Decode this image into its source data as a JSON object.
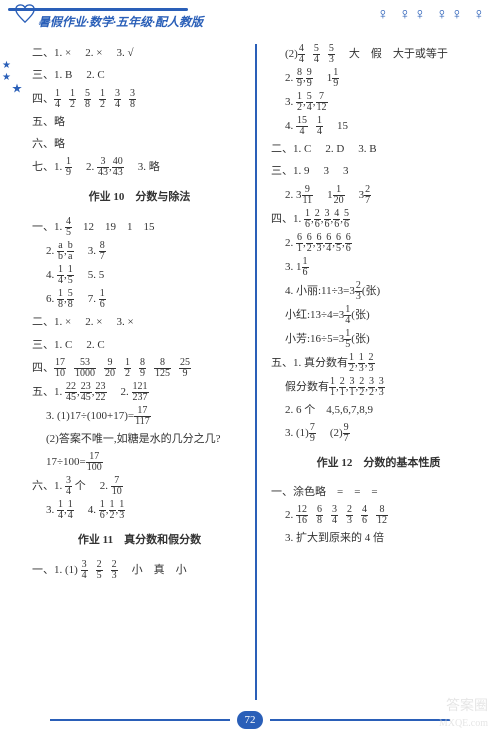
{
  "header": {
    "title": "暑假作业·数学·五年级·配人教版"
  },
  "page_number": "72",
  "watermark1": "答案圈",
  "watermark2": "MXQE.com",
  "col1": {
    "l1": {
      "p1": "二、1. ×",
      "p2": "2. ×",
      "p3": "3. √"
    },
    "l2": {
      "p1": "三、1. B",
      "p2": "2. C"
    },
    "l3_prefix": "四、",
    "l3_fracs": [
      [
        "1",
        "4"
      ],
      [
        "1",
        "2"
      ],
      [
        "5",
        "8"
      ],
      [
        "1",
        "2"
      ],
      [
        "3",
        "4"
      ],
      [
        "3",
        "8"
      ]
    ],
    "l4": "五、略",
    "l5": "六、略",
    "l6_prefix": "七、1.",
    "l6_f1": [
      "1",
      "9"
    ],
    "l6_p2": "2.",
    "l6_f2": [
      "3",
      "43"
    ],
    "l6_f3": [
      "40",
      "43"
    ],
    "l6_p3": "3. 略",
    "section1": "作业 10　分数与除法",
    "l7_prefix": "一、1.",
    "l7_f1": [
      "4",
      "5"
    ],
    "l7_rest": "　12　19　1　15",
    "l8_p1": "2.",
    "l8_f1": [
      "a",
      "b"
    ],
    "l8_f2": [
      "b",
      "a"
    ],
    "l8_p2": "3.",
    "l8_f3": [
      "8",
      "7"
    ],
    "l9_p1": "4.",
    "l9_f1": [
      "1",
      "4"
    ],
    "l9_f2": [
      "1",
      "5"
    ],
    "l9_p2": "5. 5",
    "l10_p1": "6.",
    "l10_f1": [
      "1",
      "8"
    ],
    "l10_f2": [
      "5",
      "8"
    ],
    "l10_p2": "7.",
    "l10_f3": [
      "1",
      "6"
    ],
    "l11": {
      "p1": "二、1. ×",
      "p2": "2. ×",
      "p3": "3. ×"
    },
    "l12": {
      "p1": "三、1. C",
      "p2": "2. C"
    },
    "l13_prefix": "四、",
    "l13_fracs": [
      [
        "17",
        "10"
      ],
      [
        "53",
        "1000"
      ],
      [
        "9",
        "20"
      ],
      [
        "1",
        "2"
      ],
      [
        "8",
        "9"
      ],
      [
        "8",
        "125"
      ],
      [
        "25",
        "9"
      ]
    ],
    "l14_prefix": "五、1.",
    "l14_fracs": [
      [
        "22",
        "45"
      ],
      [
        "23",
        "45"
      ],
      [
        "23",
        "22"
      ]
    ],
    "l14_p2": "2.",
    "l14_f4": [
      "121",
      "237"
    ],
    "l15_p1": "3. (1)17÷(100+17)=",
    "l15_f1": [
      "17",
      "117"
    ],
    "l16": "(2)答案不唯一,如糖是水的几分之几?",
    "l17_p1": "17÷100=",
    "l17_f1": [
      "17",
      "100"
    ],
    "l18_p1": "六、1.",
    "l18_f1": [
      "3",
      "4"
    ],
    "l18_p2": "个",
    "l18_p3": "2.",
    "l18_f2": [
      "7",
      "10"
    ],
    "l19_p1": "3.",
    "l19_f1": [
      "1",
      "4"
    ],
    "l19_f2": [
      "1",
      "4"
    ],
    "l19_p2": "4.",
    "l19_f3": [
      "1",
      "6"
    ],
    "l19_f4": [
      "1",
      "2"
    ],
    "l19_f5": [
      "1",
      "3"
    ],
    "section2": "作业 11　真分数和假分数",
    "l20_p1": "一、1. (1)",
    "l20_f1": [
      "3",
      "4"
    ],
    "l20_f2": [
      "2",
      "5"
    ],
    "l20_f3": [
      "2",
      "3"
    ],
    "l20_p2": "小　真　小"
  },
  "col2": {
    "l1_p1": "(2)",
    "l1_f1": [
      "4",
      "4"
    ],
    "l1_f2": [
      "5",
      "4"
    ],
    "l1_f3": [
      "5",
      "3"
    ],
    "l1_p2": "大　假　大于或等于",
    "l2_p1": "2.",
    "l2_f1": [
      "8",
      "9"
    ],
    "l2_f2": [
      "9",
      "9"
    ],
    "l2_p2": "1",
    "l2_f3": [
      "1",
      "9"
    ],
    "l3_p1": "3.",
    "l3_f1": [
      "1",
      "2"
    ],
    "l3_f2": [
      "5",
      "4"
    ],
    "l3_f3": [
      "7",
      "12"
    ],
    "l4_p1": "4.",
    "l4_f1": [
      "15",
      "4"
    ],
    "l4_f2": [
      "1",
      "4"
    ],
    "l4_p2": "15",
    "l5": {
      "p1": "二、1. C",
      "p2": "2. D",
      "p3": "3. B"
    },
    "l6": {
      "p1": "三、1. 9",
      "p2": "3",
      "p3": "3"
    },
    "l7_p1": "2. 3",
    "l7_f1": [
      "9",
      "11"
    ],
    "l7_p2": "1",
    "l7_f2": [
      "1",
      "20"
    ],
    "l7_p3": "3",
    "l7_f3": [
      "2",
      "7"
    ],
    "l8_p1": "四、1.",
    "l8_fracs": [
      [
        "1",
        "6"
      ],
      [
        "2",
        "6"
      ],
      [
        "3",
        "6"
      ],
      [
        "4",
        "6"
      ],
      [
        "5",
        "6"
      ]
    ],
    "l9_p1": "2.",
    "l9_fracs": [
      [
        "6",
        "1"
      ],
      [
        "6",
        "2"
      ],
      [
        "6",
        "3"
      ],
      [
        "6",
        "4"
      ],
      [
        "6",
        "5"
      ],
      [
        "6",
        "6"
      ]
    ],
    "l10_p1": "3. 1",
    "l10_f1": [
      "1",
      "6"
    ],
    "l11_p1": "4. 小丽:11÷3=3",
    "l11_f1": [
      "2",
      "3"
    ],
    "l11_p2": "(张)",
    "l12_p1": "小红:13÷4=3",
    "l12_f1": [
      "1",
      "4"
    ],
    "l12_p2": "(张)",
    "l13_p1": "小芳:16÷5=3",
    "l13_f1": [
      "1",
      "5"
    ],
    "l13_p2": "(张)",
    "l14_p1": "五、1. 真分数有",
    "l14_f1": [
      "1",
      "2"
    ],
    "l14_f2": [
      "1",
      "3"
    ],
    "l14_f3": [
      "2",
      "3"
    ],
    "l15_p1": "假分数有",
    "l15_fracs": [
      [
        "1",
        "1"
      ],
      [
        "2",
        "1"
      ],
      [
        "3",
        "1"
      ],
      [
        "2",
        "2"
      ],
      [
        "3",
        "2"
      ],
      [
        "3",
        "3"
      ]
    ],
    "l16": "2. 6 个　4,5,6,7,8,9",
    "l17_p1": "3. (1)",
    "l17_f1": [
      "7",
      "9"
    ],
    "l17_p2": "(2)",
    "l17_f2": [
      "9",
      "7"
    ],
    "section3": "作业 12　分数的基本性质",
    "l18": "一、涂色略　=　=　=",
    "l19_p1": "2.",
    "l19_fracs": [
      [
        "12",
        "16"
      ],
      [
        "6",
        "8"
      ],
      [
        "3",
        "4"
      ],
      [
        "2",
        "3"
      ],
      [
        "4",
        "6"
      ],
      [
        "8",
        "12"
      ]
    ],
    "l20": "3. 扩大到原来的 4 倍"
  }
}
